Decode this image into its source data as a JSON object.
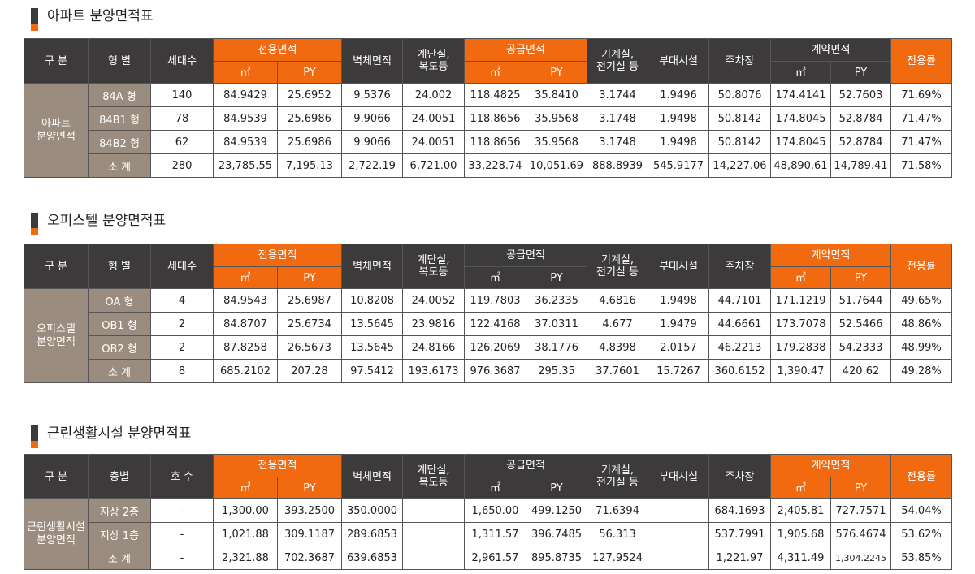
{
  "sections": [
    {
      "title": "아파트 분양면적표",
      "header": {
        "gubun": "구 분",
        "type": "형 별",
        "count": "세대수",
        "exclusive": "전용면적",
        "wall": "벽체면적",
        "stair_l1": "계단실,",
        "stair_l2": "복도등",
        "supply": "공급면적",
        "mech_l1": "기계실,",
        "mech_l2": "전기실 등",
        "aux": "부대시설",
        "parking": "주차장",
        "contract": "계약면적",
        "ratio": "전용률",
        "unit_m2": "㎡",
        "unit_py": "PY"
      },
      "side_label_l1": "아파트",
      "side_label_l2": "분양면적",
      "rows": [
        [
          "84A 형",
          "140",
          "84.9429",
          "25.6952",
          "9.5376",
          "24.002",
          "118.4825",
          "35.8410",
          "3.1744",
          "1.9496",
          "50.8076",
          "174.4141",
          "52.7603",
          "71.69%"
        ],
        [
          "84B1 형",
          "78",
          "84.9539",
          "25.6986",
          "9.9066",
          "24.0051",
          "118.8656",
          "35.9568",
          "3.1748",
          "1.9498",
          "50.8142",
          "174.8045",
          "52.8784",
          "71.47%"
        ],
        [
          "84B2 형",
          "62",
          "84.9539",
          "25.6986",
          "9.9066",
          "24.0051",
          "118.8656",
          "35.9568",
          "3.1748",
          "1.9498",
          "50.8142",
          "174.8045",
          "52.8784",
          "71.47%"
        ],
        [
          "소 계",
          "280",
          "23,785.55",
          "7,195.13",
          "2,722.19",
          "6,721.00",
          "33,228.74",
          "10,051.69",
          "888.8939",
          "545.9177",
          "14,227.06",
          "48,890.61",
          "14,789.41",
          "71.58%"
        ]
      ]
    },
    {
      "title": "오피스텔 분양면적표",
      "header": {
        "gubun": "구 분",
        "type": "형 별",
        "count": "세대수",
        "exclusive": "전용면적",
        "wall": "벽체면적",
        "stair_l1": "계단실,",
        "stair_l2": "복도등",
        "supply": "공급면적",
        "mech_l1": "기계실,",
        "mech_l2": "전기실 등",
        "aux": "부대시설",
        "parking": "주차장",
        "contract": "계약면적",
        "ratio": "전용률",
        "unit_m2": "㎡",
        "unit_py": "PY"
      },
      "side_label_l1": "오피스텔",
      "side_label_l2": "분양면적",
      "rows": [
        [
          "OA 형",
          "4",
          "84.9543",
          "25.6987",
          "10.8208",
          "24.0052",
          "119.7803",
          "36.2335",
          "4.6816",
          "1.9498",
          "44.7101",
          "171.1219",
          "51.7644",
          "49.65%"
        ],
        [
          "OB1 형",
          "2",
          "84.8707",
          "25.6734",
          "13.5645",
          "23.9816",
          "122.4168",
          "37.0311",
          "4.677",
          "1.9479",
          "44.6661",
          "173.7078",
          "52.5466",
          "48.86%"
        ],
        [
          "OB2 형",
          "2",
          "87.8258",
          "26.5673",
          "13.5645",
          "24.8166",
          "126.2069",
          "38.1776",
          "4.8398",
          "2.0157",
          "46.2213",
          "179.2838",
          "54.2333",
          "48.99%"
        ],
        [
          "소 계",
          "8",
          "685.2102",
          "207.28",
          "97.5412",
          "193.6173",
          "976.3687",
          "295.35",
          "37.7601",
          "15.7267",
          "360.6152",
          "1,390.47",
          "420.62",
          "49.28%"
        ]
      ]
    },
    {
      "title": "근린생활시설 분양면적표",
      "header": {
        "gubun": "구 분",
        "type": "층별",
        "count": "호 수",
        "exclusive": "전용면적",
        "wall": "벽체면적",
        "stair_l1": "계단실,",
        "stair_l2": "복도등",
        "supply": "공급면적",
        "mech_l1": "기계실,",
        "mech_l2": "전기실 등",
        "aux": "부대시설",
        "parking": "주차장",
        "contract": "계약면적",
        "ratio": "전용률",
        "unit_m2": "㎡",
        "unit_py": "PY"
      },
      "side_label_l1": "근린생활시설",
      "side_label_l2": "분양면적",
      "rows": [
        [
          "지상 2층",
          "-",
          "1,300.00",
          "393.2500",
          "350.0000",
          "",
          "1,650.00",
          "499.1250",
          "71.6394",
          "",
          "684.1693",
          "2,405.81",
          "727.7571",
          "54.04%"
        ],
        [
          "지상 1층",
          "-",
          "1,021.88",
          "309.1187",
          "289.6853",
          "",
          "1,311.57",
          "396.7485",
          "56.313",
          "",
          "537.7991",
          "1,905.68",
          "576.4674",
          "53.62%"
        ],
        [
          "소 계",
          "-",
          "2,321.88",
          "702.3687",
          "639.6853",
          "",
          "2,961.57",
          "895.8735",
          "127.9524",
          "",
          "1,221.97",
          "4,311.49",
          "1,304.2245",
          "53.85%"
        ]
      ]
    }
  ],
  "colors": {
    "dark_header": "#3d3a3b",
    "orange_header": "#f26a10",
    "side_taupe": "#9a8c7e"
  }
}
